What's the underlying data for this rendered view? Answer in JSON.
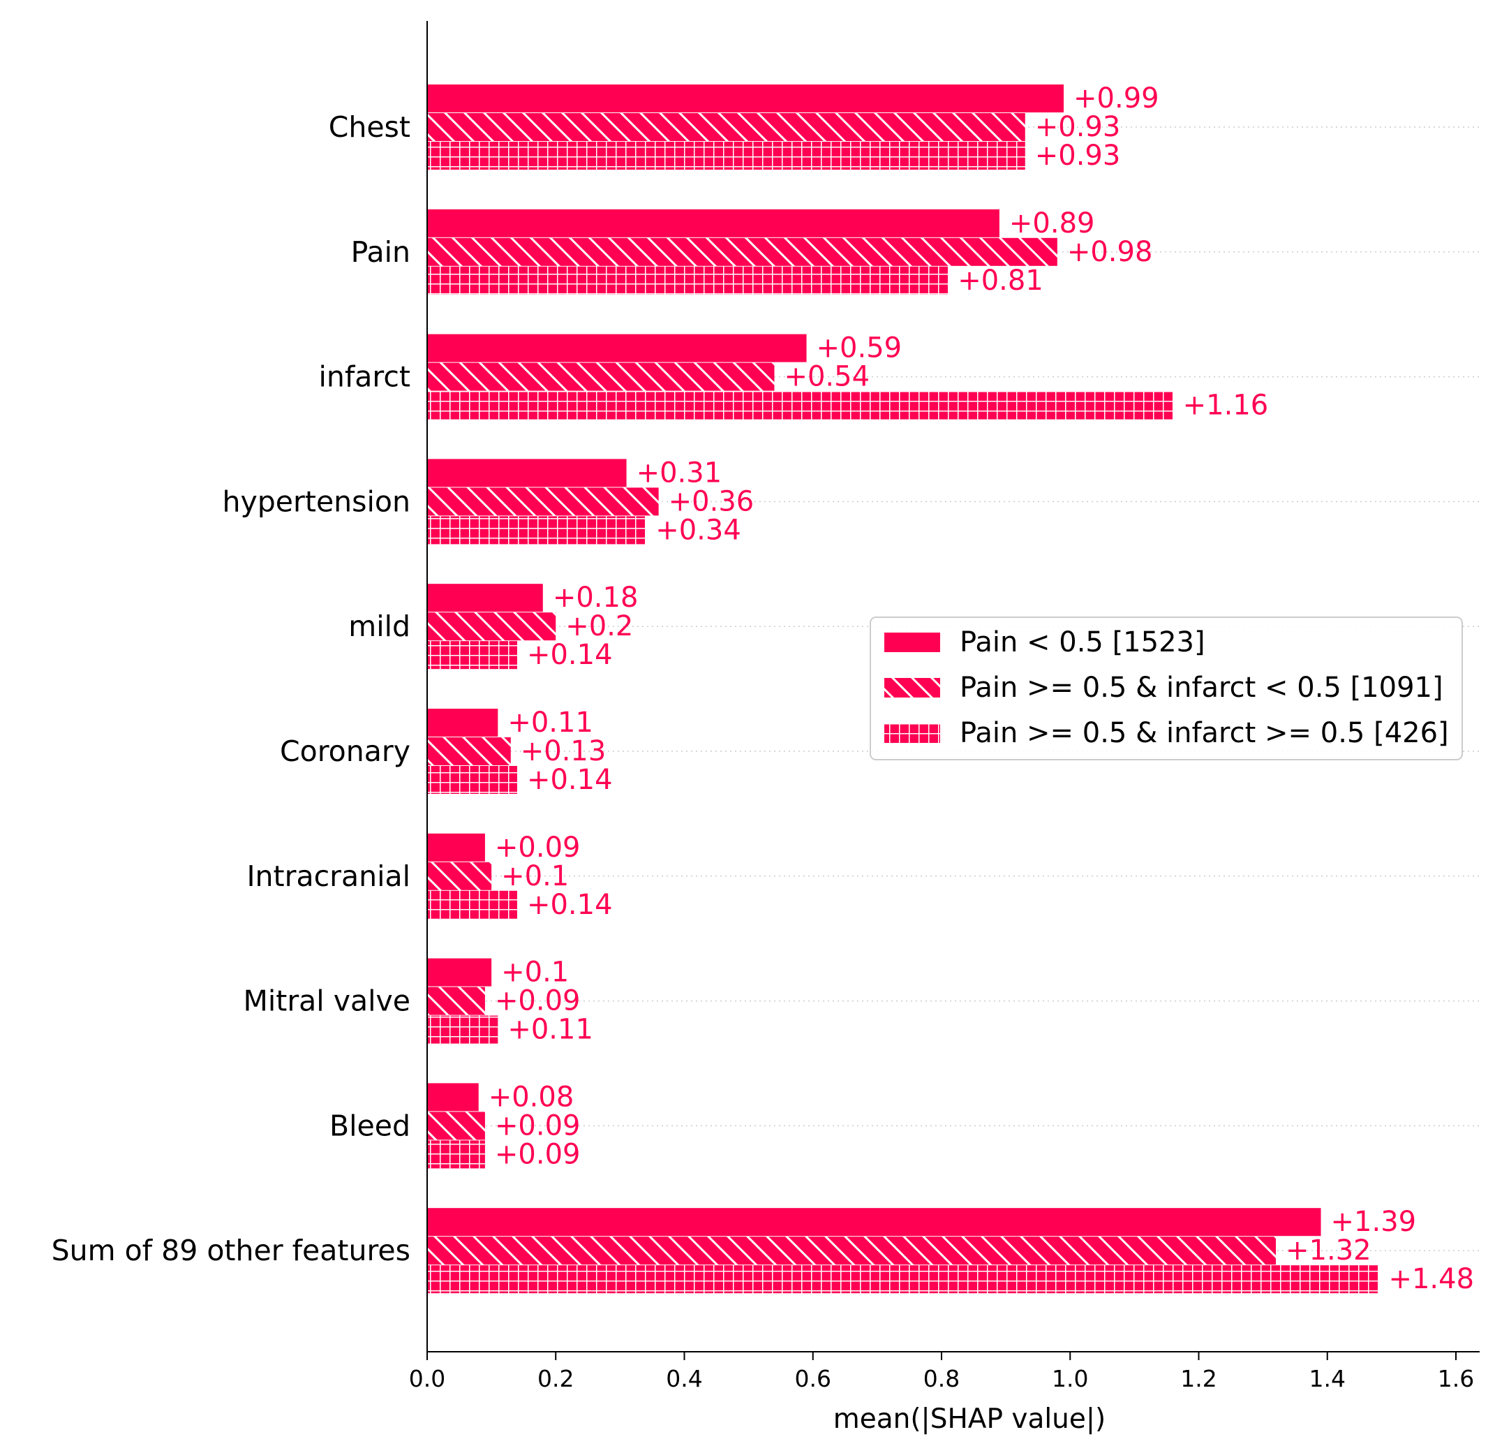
{
  "colors": {
    "bar": "#ff0052",
    "axis": "#000000",
    "gridline": "#cccccc",
    "legend_border": "#cccccc"
  },
  "chart_data": {
    "type": "bar",
    "orientation": "horizontal",
    "title": "",
    "xlabel": "mean(|SHAP value|)",
    "ylabel": "",
    "xlim": [
      0,
      1.63
    ],
    "xticks": [
      "0.0",
      "0.2",
      "0.4",
      "0.6",
      "0.8",
      "1.0",
      "1.2",
      "1.4",
      "1.6"
    ],
    "grid": "dotted horizontal guide lines at each category",
    "legend_position": "center-right",
    "categories": [
      "Chest",
      "Pain",
      "infarct",
      "hypertension",
      "mild",
      "Coronary",
      "Intracranial",
      "Mitral valve",
      "Bleed",
      "Sum of 89 other features"
    ],
    "series": [
      {
        "name": "Pain < 0.5 [1523]",
        "pattern": "solid",
        "values": [
          0.99,
          0.89,
          0.59,
          0.31,
          0.18,
          0.11,
          0.09,
          0.1,
          0.08,
          1.39
        ],
        "labels": [
          "+0.99",
          "+0.89",
          "+0.59",
          "+0.31",
          "+0.18",
          "+0.11",
          "+0.09",
          "+0.1",
          "+0.08",
          "+1.39"
        ]
      },
      {
        "name": "Pain >= 0.5 & infarct < 0.5 [1091]",
        "pattern": "diagonal-hatch",
        "values": [
          0.93,
          0.98,
          0.54,
          0.36,
          0.2,
          0.13,
          0.1,
          0.09,
          0.09,
          1.32
        ],
        "labels": [
          "+0.93",
          "+0.98",
          "+0.54",
          "+0.36",
          "+0.2",
          "+0.13",
          "+0.1",
          "+0.09",
          "+0.09",
          "+1.32"
        ]
      },
      {
        "name": "Pain >= 0.5 & infarct >= 0.5 [426]",
        "pattern": "grid-hatch",
        "values": [
          0.93,
          0.81,
          1.16,
          0.34,
          0.14,
          0.14,
          0.14,
          0.11,
          0.09,
          1.48
        ],
        "labels": [
          "+0.93",
          "+0.81",
          "+1.16",
          "+0.34",
          "+0.14",
          "+0.14",
          "+0.14",
          "+0.11",
          "+0.09",
          "+1.48"
        ]
      }
    ]
  }
}
